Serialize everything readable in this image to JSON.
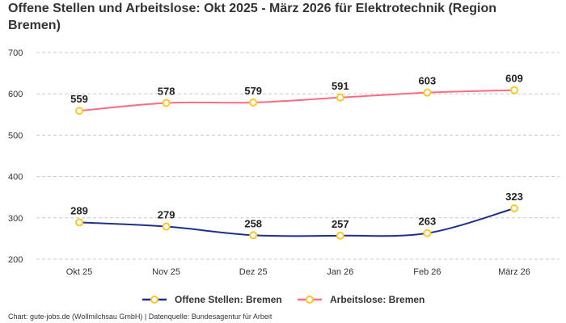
{
  "chart_data": {
    "type": "line",
    "title": "Offene Stellen und Arbeitslose: Okt 2025 - März 2026 für Elektrotechnik (Region Bremen)",
    "categories": [
      "Okt 25",
      "Nov 25",
      "Dez 25",
      "Jan 26",
      "Feb 26",
      "März 26"
    ],
    "series": [
      {
        "name": "Offene Stellen: Bremen",
        "values": [
          289,
          279,
          258,
          257,
          263,
          323
        ],
        "color": "#1f2f8f"
      },
      {
        "name": "Arbeitslose: Bremen",
        "values": [
          559,
          578,
          579,
          591,
          603,
          609
        ],
        "color": "#ff6b81"
      }
    ],
    "marker_color": "#ffc629",
    "ylim": [
      200,
      700
    ],
    "yticks": [
      200,
      300,
      400,
      500,
      600,
      700
    ],
    "grid": true,
    "legend": "bottom",
    "xlabel": "",
    "ylabel": ""
  },
  "footer": "Chart: gute-jobs.de (Wollmilchsau GmbH) | Datenquelle: Bundesagentur für Arbeit"
}
